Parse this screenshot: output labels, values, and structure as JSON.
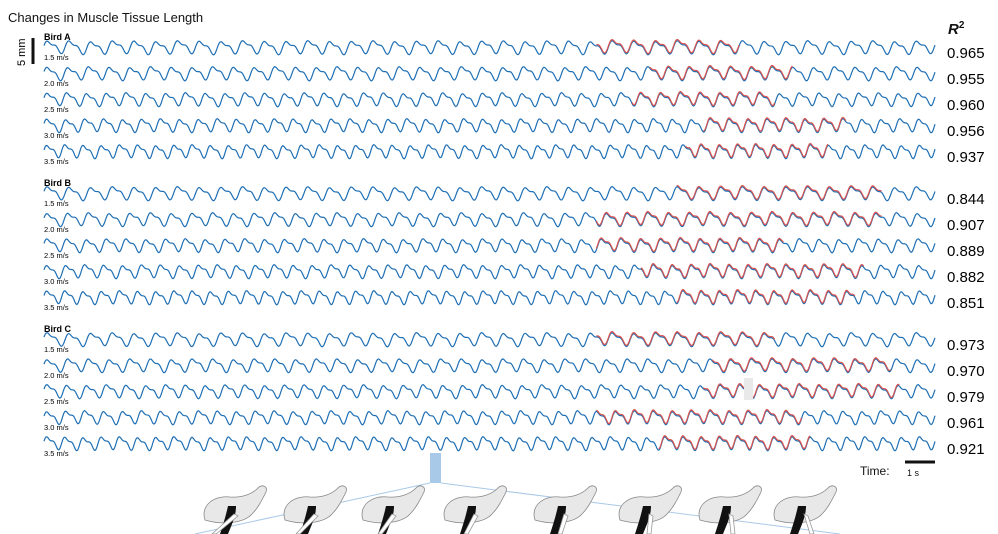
{
  "title": "Changes in Muscle Tissue Length",
  "r2_header": {
    "symbol": "R",
    "exponent": "2"
  },
  "scale": {
    "length": "5 mm",
    "time_label": "Time:",
    "time_unit": "1 s"
  },
  "colors": {
    "measured": "#1f6fb4",
    "predicted": "#d9534f",
    "highlight": "#a9c9e8",
    "silhouette": "#e8e8e8"
  },
  "chart_data": {
    "type": "line",
    "title": "Changes in Muscle Tissue Length",
    "ylabel": "5 mm",
    "xlabel": "Time",
    "groups": [
      {
        "bird": "Bird A",
        "rows": [
          {
            "speed": "1.5 m/s",
            "r2": "0.965",
            "cycles": 41,
            "predicted_range": [
              0.62,
              0.78
            ]
          },
          {
            "speed": "2.0 m/s",
            "r2": "0.955",
            "cycles": 43,
            "predicted_range": [
              0.68,
              0.84
            ]
          },
          {
            "speed": "2.5 m/s",
            "r2": "0.960",
            "cycles": 45,
            "predicted_range": [
              0.66,
              0.82
            ]
          },
          {
            "speed": "3.0 m/s",
            "r2": "0.956",
            "cycles": 47,
            "predicted_range": [
              0.74,
              0.9
            ]
          },
          {
            "speed": "3.5 m/s",
            "r2": "0.937",
            "cycles": 49,
            "predicted_range": [
              0.72,
              0.88
            ]
          }
        ]
      },
      {
        "bird": "Bird B",
        "rows": [
          {
            "speed": "1.5 m/s",
            "r2": "0.844",
            "cycles": 41,
            "predicted_range": [
              0.71,
              0.94
            ]
          },
          {
            "speed": "2.0 m/s",
            "r2": "0.907",
            "cycles": 43,
            "predicted_range": [
              0.62,
              0.94
            ]
          },
          {
            "speed": "2.5 m/s",
            "r2": "0.889",
            "cycles": 45,
            "predicted_range": [
              0.62,
              0.83
            ]
          },
          {
            "speed": "3.0 m/s",
            "r2": "0.882",
            "cycles": 47,
            "predicted_range": [
              0.67,
              0.92
            ]
          },
          {
            "speed": "3.5 m/s",
            "r2": "0.851",
            "cycles": 49,
            "predicted_range": [
              0.71,
              0.91
            ]
          }
        ]
      },
      {
        "bird": "Bird C",
        "rows": [
          {
            "speed": "1.5 m/s",
            "r2": "0.973",
            "cycles": 41,
            "predicted_range": [
              0.62,
              0.82
            ]
          },
          {
            "speed": "2.0 m/s",
            "r2": "0.970",
            "cycles": 43,
            "predicted_range": [
              0.75,
              0.95
            ]
          },
          {
            "speed": "2.5 m/s",
            "r2": "0.979",
            "cycles": 45,
            "predicted_range": [
              0.74,
              0.96
            ]
          },
          {
            "speed": "3.0 m/s",
            "r2": "0.961",
            "cycles": 47,
            "predicted_range": [
              0.62,
              0.85
            ]
          },
          {
            "speed": "3.5 m/s",
            "r2": "0.921",
            "cycles": 49,
            "predicted_range": [
              0.69,
              0.86
            ]
          }
        ]
      }
    ]
  }
}
